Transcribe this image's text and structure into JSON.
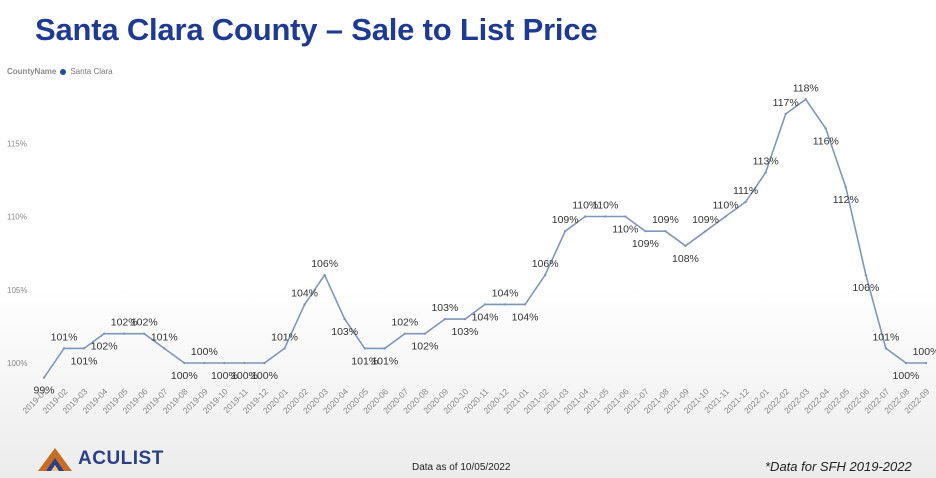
{
  "page": {
    "title": "Santa Clara County – Sale to List Price",
    "data_date": "Data as of 10/05/2022",
    "footnote": "*Data for SFH 2019-2022",
    "logo_text": "ACULIST"
  },
  "legend": {
    "title": "CountyName",
    "entries": [
      {
        "name": "Santa Clara",
        "color": "#1f4e9c"
      }
    ]
  },
  "chart_data": {
    "type": "line",
    "title": "",
    "xlabel": "",
    "ylabel": "",
    "ylim": [
      98.5,
      118.5
    ],
    "y_ticks": [
      100,
      105,
      110,
      115
    ],
    "y_tick_labels": [
      "100%",
      "105%",
      "110%",
      "115%"
    ],
    "grid": false,
    "line_color": "#7d97bb",
    "x": [
      "2019-01",
      "2019-02",
      "2019-03",
      "2019-04",
      "2019-05",
      "2019-06",
      "2019-07",
      "2019-08",
      "2019-09",
      "2019-10",
      "2019-11",
      "2019-12",
      "2020-01",
      "2020-02",
      "2020-03",
      "2020-04",
      "2020-05",
      "2020-06",
      "2020-07",
      "2020-08",
      "2020-09",
      "2020-10",
      "2020-11",
      "2020-12",
      "2021-01",
      "2021-02",
      "2021-03",
      "2021-04",
      "2021-05",
      "2021-06",
      "2021-07",
      "2021-08",
      "2021-09",
      "2021-10",
      "2021-11",
      "2021-12",
      "2022-01",
      "2022-02",
      "2022-03",
      "2022-04",
      "2022-05",
      "2022-06",
      "2022-07",
      "2022-08",
      "2022-09"
    ],
    "values": [
      99,
      101,
      101,
      102,
      102,
      102,
      101,
      100,
      100,
      100,
      100,
      100,
      101,
      104,
      106,
      103,
      101,
      101,
      102,
      102,
      103,
      103,
      104,
      104,
      104,
      106,
      109,
      110,
      110,
      110,
      109,
      109,
      108,
      109,
      110,
      111,
      113,
      117,
      118,
      116,
      112,
      106,
      101,
      100,
      100
    ],
    "data_labels": [
      "99%",
      "101%",
      "101%",
      "102%",
      "102%",
      "102%",
      "101%",
      "100%",
      "100%",
      "100%",
      "100%",
      "100%",
      "101%",
      "104%",
      "106%",
      "103%",
      "101%",
      "101%",
      "102%",
      "102%",
      "103%",
      "103%",
      "104%",
      "104%",
      "104%",
      "106%",
      "109%",
      "110%",
      "110%",
      "110%",
      "109%",
      "109%",
      "108%",
      "109%",
      "110%",
      "111%",
      "113%",
      "117%",
      "118%",
      "116%",
      "112%",
      "106%",
      "101%",
      "100%",
      "100%"
    ],
    "label_positions": [
      "below",
      "above",
      "below",
      "below",
      "above",
      "above",
      "above",
      "below",
      "above",
      "below",
      "below",
      "below",
      "above",
      "above",
      "above",
      "below",
      "below",
      "below",
      "above",
      "below",
      "above",
      "below",
      "below",
      "above",
      "below",
      "above",
      "above",
      "above",
      "above",
      "below",
      "below",
      "above",
      "below",
      "above",
      "above",
      "above",
      "above",
      "above",
      "above",
      "below",
      "below",
      "below",
      "above",
      "below",
      "above"
    ]
  }
}
